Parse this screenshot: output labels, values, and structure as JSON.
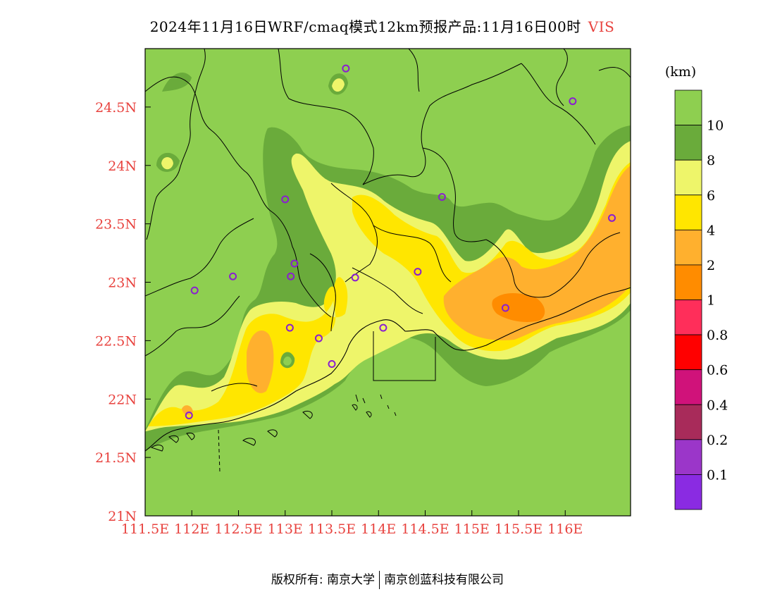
{
  "title": {
    "text": "2024年11月16日WRF/cmaq模式12km预报产品:11月16日00时",
    "variable": "VIS"
  },
  "colors": {
    "axis_label": "#e8433f",
    "land_base": "#8ecf50",
    "coast_line": "#000000",
    "station_marker": "#8a1fd0"
  },
  "map": {
    "lon_ticks": [
      "111.5E",
      "112E",
      "112.5E",
      "113E",
      "113.5E",
      "114E",
      "114.5E",
      "115E",
      "115.5E",
      "116E"
    ],
    "lat_ticks": [
      "24.5N",
      "24N",
      "23.5N",
      "23N",
      "22.5N",
      "22N",
      "21.5N",
      "21N"
    ],
    "lon_range": [
      111.5,
      116.7
    ],
    "lat_range": [
      21.0,
      25.0
    ],
    "stations": [
      {
        "lon": 113.65,
        "lat": 24.83
      },
      {
        "lon": 116.08,
        "lat": 24.55
      },
      {
        "lon": 113.0,
        "lat": 23.71
      },
      {
        "lon": 114.68,
        "lat": 23.73
      },
      {
        "lon": 116.5,
        "lat": 23.55
      },
      {
        "lon": 113.1,
        "lat": 23.16
      },
      {
        "lon": 112.44,
        "lat": 23.05
      },
      {
        "lon": 113.06,
        "lat": 23.05
      },
      {
        "lon": 113.75,
        "lat": 23.04
      },
      {
        "lon": 112.03,
        "lat": 22.93
      },
      {
        "lon": 114.42,
        "lat": 23.09
      },
      {
        "lon": 115.36,
        "lat": 22.78
      },
      {
        "lon": 113.05,
        "lat": 22.61
      },
      {
        "lon": 114.05,
        "lat": 22.61
      },
      {
        "lon": 113.36,
        "lat": 22.52
      },
      {
        "lon": 113.5,
        "lat": 22.3
      },
      {
        "lon": 111.97,
        "lat": 21.86
      }
    ]
  },
  "colorbar": {
    "unit": "(km)",
    "levels": [
      {
        "label": "10",
        "color": "#8ecf50"
      },
      {
        "label": "8",
        "color": "#6aab3b"
      },
      {
        "label": "6",
        "color": "#eef56a"
      },
      {
        "label": "4",
        "color": "#ffe600"
      },
      {
        "label": "2",
        "color": "#ffb02e"
      },
      {
        "label": "1",
        "color": "#ff8c00"
      },
      {
        "label": "0.8",
        "color": "#ff2e5a"
      },
      {
        "label": "0.6",
        "color": "#ff0000"
      },
      {
        "label": "0.4",
        "color": "#d0127a"
      },
      {
        "label": "0.2",
        "color": "#a82b5a"
      },
      {
        "label": "0.1",
        "color": "#9b36c9"
      },
      {
        "label": "",
        "color": "#8a2be2"
      }
    ]
  },
  "footer": {
    "copyright": "版权所有: 南京大学",
    "company": "南京创蓝科技有限公司"
  }
}
